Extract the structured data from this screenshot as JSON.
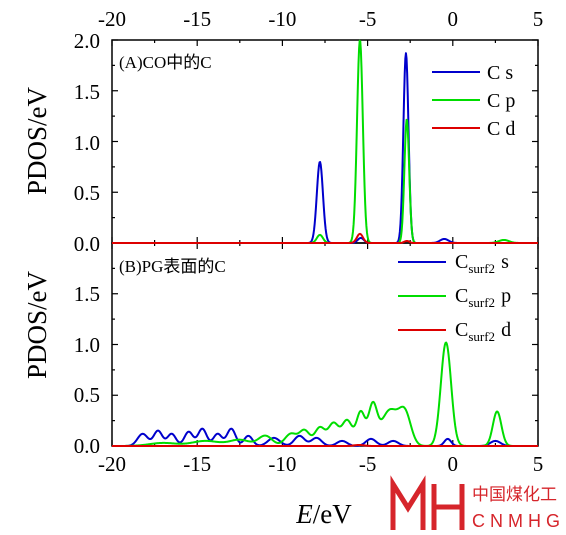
{
  "chart_data": [
    {
      "type": "line",
      "panel_label": "(A)CO中的C",
      "ylabel": "PDOS/eV",
      "xlim": [
        -20,
        5
      ],
      "ylim": [
        0,
        2.0
      ],
      "y_ticks": [
        "0.0",
        "0.5",
        "1.0",
        "1.5",
        "2.0"
      ],
      "top_x_ticks": [
        "-20",
        "-15",
        "-10",
        "-5",
        "0",
        "5"
      ],
      "legend_placement": "top-right",
      "series": [
        {
          "name": "C s",
          "legend_main": "C",
          "legend_sub": "",
          "legend_orb": "s",
          "color": "#0000cc",
          "peaks": [
            [
              -7.8,
              0.8,
              0.18
            ],
            [
              -5.4,
              0.05,
              0.18
            ],
            [
              -2.75,
              1.87,
              0.15
            ],
            [
              -0.5,
              0.04,
              0.25
            ]
          ]
        },
        {
          "name": "C p",
          "legend_main": "C",
          "legend_sub": "",
          "legend_orb": "p",
          "color": "#00dd00",
          "peaks": [
            [
              -7.8,
              0.08,
              0.18
            ],
            [
              -5.45,
              2.0,
              0.17
            ],
            [
              -2.7,
              1.22,
              0.14
            ],
            [
              3.0,
              0.03,
              0.3
            ]
          ]
        },
        {
          "name": "C d",
          "legend_main": "C",
          "legend_sub": "",
          "legend_orb": "d",
          "color": "#dd0000",
          "peaks": [
            [
              -5.45,
              0.09,
              0.18
            ],
            [
              -2.7,
              0.02,
              0.15
            ]
          ]
        }
      ]
    },
    {
      "type": "line",
      "panel_label": "(B)PG表面的C",
      "ylabel": "PDOS/eV",
      "xlabel_italic": "E",
      "xlabel_rest": "/eV",
      "xlim": [
        -20,
        5
      ],
      "ylim": [
        0,
        2.0
      ],
      "y_ticks": [
        "0.0",
        "0.5",
        "1.0",
        "1.5"
      ],
      "bottom_x_ticks": [
        "-20",
        "-15",
        "-10",
        "-5",
        "0",
        "5"
      ],
      "legend_placement": "top-right",
      "series": [
        {
          "name": "Csurf2 s",
          "legend_main": "C",
          "legend_sub": "surf2",
          "legend_orb": "s",
          "color": "#0000cc",
          "peaks": [
            [
              -18.2,
              0.12,
              0.3
            ],
            [
              -17.3,
              0.15,
              0.25
            ],
            [
              -16.5,
              0.12,
              0.25
            ],
            [
              -15.5,
              0.14,
              0.25
            ],
            [
              -14.7,
              0.17,
              0.25
            ],
            [
              -13.8,
              0.12,
              0.25
            ],
            [
              -13.0,
              0.17,
              0.25
            ],
            [
              -12.0,
              0.1,
              0.25
            ],
            [
              -10.5,
              0.08,
              0.35
            ],
            [
              -9.0,
              0.1,
              0.3
            ],
            [
              -8.0,
              0.08,
              0.3
            ],
            [
              -6.5,
              0.05,
              0.3
            ],
            [
              -4.8,
              0.07,
              0.3
            ],
            [
              -3.5,
              0.05,
              0.3
            ],
            [
              -0.3,
              0.07,
              0.2
            ],
            [
              2.5,
              0.05,
              0.3
            ]
          ]
        },
        {
          "name": "Csurf2 p",
          "legend_main": "C",
          "legend_sub": "surf2",
          "legend_orb": "p",
          "color": "#00dd00",
          "peaks": [
            [
              -17.0,
              0.03,
              0.8
            ],
            [
              -14.5,
              0.05,
              0.8
            ],
            [
              -12.5,
              0.06,
              0.6
            ],
            [
              -11.0,
              0.1,
              0.4
            ],
            [
              -9.5,
              0.12,
              0.35
            ],
            [
              -8.7,
              0.15,
              0.3
            ],
            [
              -7.8,
              0.18,
              0.3
            ],
            [
              -7.0,
              0.22,
              0.3
            ],
            [
              -6.2,
              0.25,
              0.3
            ],
            [
              -5.4,
              0.33,
              0.25
            ],
            [
              -4.7,
              0.38,
              0.25
            ],
            [
              -3.7,
              0.35,
              0.5
            ],
            [
              -2.8,
              0.3,
              0.35
            ],
            [
              -0.4,
              1.02,
              0.3
            ],
            [
              2.6,
              0.34,
              0.25
            ]
          ]
        },
        {
          "name": "Csurf2 d",
          "legend_main": "C",
          "legend_sub": "surf2",
          "legend_orb": "d",
          "color": "#dd0000",
          "peaks": [
            [
              -5.5,
              0.01,
              0.3
            ]
          ]
        }
      ]
    }
  ],
  "watermark": {
    "cn_text": "中国煤化工",
    "en_text": "CNMHG",
    "color": "#d6252b"
  }
}
